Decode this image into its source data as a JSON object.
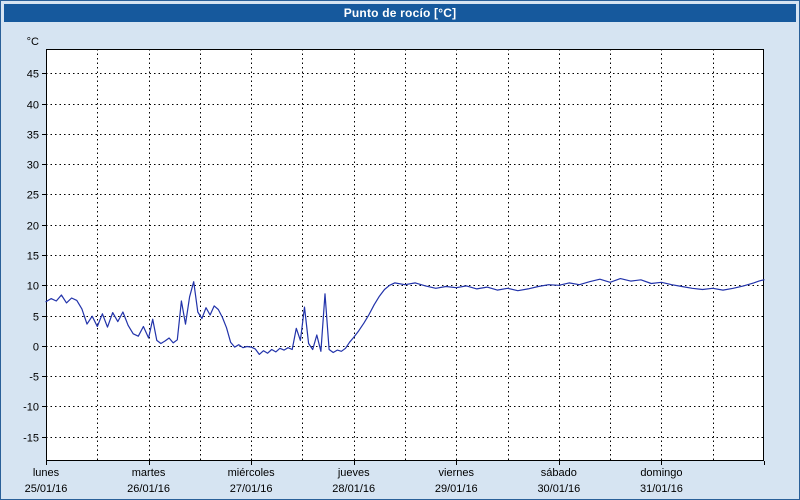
{
  "window": {
    "title": "Punto de rocío [°C]"
  },
  "colors": {
    "titlebar_bg": "#16599d",
    "titlebar_text": "#ffffff",
    "background": "#d6e4f2",
    "frame_border": "#2a6099",
    "plot_bg": "#ffffff",
    "plot_border": "#000000",
    "grid": "#000000",
    "line": "#2233aa",
    "text": "#000000"
  },
  "chart_data": {
    "type": "line",
    "title": "Punto de rocío [°C]",
    "ylabel": "°C",
    "y_unit_label": "°C",
    "ylim": [
      -19,
      49
    ],
    "y_ticks": [
      45,
      40,
      35,
      30,
      25,
      20,
      15,
      10,
      5,
      0,
      -5,
      -10,
      -15
    ],
    "x_range_days": [
      0,
      7
    ],
    "x_minor_step_days": 0.5,
    "grid": "dashed",
    "legend": "none",
    "x_days": [
      {
        "name": "lunes",
        "date": "25/01/16"
      },
      {
        "name": "martes",
        "date": "26/01/16"
      },
      {
        "name": "miércoles",
        "date": "27/01/16"
      },
      {
        "name": "jueves",
        "date": "28/01/16"
      },
      {
        "name": "viernes",
        "date": "29/01/16"
      },
      {
        "name": "sábado",
        "date": "30/01/16"
      },
      {
        "name": "domingo",
        "date": "31/01/16"
      }
    ],
    "series": [
      {
        "name": "Punto de rocío",
        "color": "#2233aa",
        "points": [
          [
            0.0,
            7.3
          ],
          [
            0.05,
            7.8
          ],
          [
            0.1,
            7.4
          ],
          [
            0.15,
            8.4
          ],
          [
            0.2,
            7.1
          ],
          [
            0.25,
            7.9
          ],
          [
            0.3,
            7.5
          ],
          [
            0.35,
            6.1
          ],
          [
            0.4,
            3.6
          ],
          [
            0.45,
            4.9
          ],
          [
            0.5,
            3.2
          ],
          [
            0.55,
            5.3
          ],
          [
            0.6,
            3.1
          ],
          [
            0.65,
            5.5
          ],
          [
            0.7,
            4.0
          ],
          [
            0.75,
            5.6
          ],
          [
            0.8,
            3.4
          ],
          [
            0.85,
            2.0
          ],
          [
            0.9,
            1.6
          ],
          [
            0.95,
            3.2
          ],
          [
            1.0,
            1.3
          ],
          [
            1.04,
            4.4
          ],
          [
            1.08,
            0.9
          ],
          [
            1.12,
            0.4
          ],
          [
            1.16,
            0.8
          ],
          [
            1.2,
            1.3
          ],
          [
            1.24,
            0.5
          ],
          [
            1.28,
            1.0
          ],
          [
            1.32,
            7.4
          ],
          [
            1.36,
            3.6
          ],
          [
            1.4,
            8.1
          ],
          [
            1.44,
            10.6
          ],
          [
            1.48,
            5.6
          ],
          [
            1.52,
            4.5
          ],
          [
            1.56,
            6.3
          ],
          [
            1.6,
            5.1
          ],
          [
            1.64,
            6.6
          ],
          [
            1.68,
            6.0
          ],
          [
            1.72,
            4.7
          ],
          [
            1.76,
            3.0
          ],
          [
            1.8,
            0.6
          ],
          [
            1.84,
            -0.2
          ],
          [
            1.88,
            0.2
          ],
          [
            1.92,
            -0.3
          ],
          [
            1.96,
            -0.1
          ],
          [
            2.0,
            -0.2
          ],
          [
            2.04,
            -0.5
          ],
          [
            2.08,
            -1.4
          ],
          [
            2.12,
            -0.8
          ],
          [
            2.16,
            -1.2
          ],
          [
            2.2,
            -0.6
          ],
          [
            2.24,
            -1.0
          ],
          [
            2.28,
            -0.4
          ],
          [
            2.32,
            -0.7
          ],
          [
            2.36,
            -0.3
          ],
          [
            2.4,
            -0.6
          ],
          [
            2.44,
            2.9
          ],
          [
            2.48,
            0.9
          ],
          [
            2.52,
            6.4
          ],
          [
            2.56,
            0.4
          ],
          [
            2.6,
            -0.6
          ],
          [
            2.64,
            1.8
          ],
          [
            2.68,
            -0.9
          ],
          [
            2.72,
            8.6
          ],
          [
            2.76,
            -0.6
          ],
          [
            2.8,
            -1.1
          ],
          [
            2.84,
            -0.7
          ],
          [
            2.88,
            -0.9
          ],
          [
            2.92,
            -0.4
          ],
          [
            2.96,
            0.6
          ],
          [
            3.0,
            1.4
          ],
          [
            3.05,
            2.5
          ],
          [
            3.1,
            3.8
          ],
          [
            3.15,
            5.2
          ],
          [
            3.2,
            6.8
          ],
          [
            3.25,
            8.2
          ],
          [
            3.3,
            9.3
          ],
          [
            3.35,
            10.0
          ],
          [
            3.4,
            10.4
          ],
          [
            3.5,
            10.1
          ],
          [
            3.6,
            10.4
          ],
          [
            3.7,
            9.9
          ],
          [
            3.8,
            9.5
          ],
          [
            3.9,
            9.8
          ],
          [
            4.0,
            9.6
          ],
          [
            4.1,
            9.9
          ],
          [
            4.2,
            9.4
          ],
          [
            4.3,
            9.7
          ],
          [
            4.4,
            9.2
          ],
          [
            4.5,
            9.5
          ],
          [
            4.6,
            9.1
          ],
          [
            4.7,
            9.4
          ],
          [
            4.8,
            9.8
          ],
          [
            4.9,
            10.1
          ],
          [
            5.0,
            10.0
          ],
          [
            5.1,
            10.4
          ],
          [
            5.2,
            10.1
          ],
          [
            5.3,
            10.6
          ],
          [
            5.4,
            11.0
          ],
          [
            5.5,
            10.5
          ],
          [
            5.6,
            11.1
          ],
          [
            5.7,
            10.7
          ],
          [
            5.8,
            10.9
          ],
          [
            5.9,
            10.3
          ],
          [
            6.0,
            10.5
          ],
          [
            6.1,
            10.1
          ],
          [
            6.2,
            9.8
          ],
          [
            6.3,
            9.5
          ],
          [
            6.4,
            9.3
          ],
          [
            6.5,
            9.5
          ],
          [
            6.6,
            9.2
          ],
          [
            6.7,
            9.5
          ],
          [
            6.8,
            9.9
          ],
          [
            6.9,
            10.4
          ],
          [
            6.95,
            10.7
          ],
          [
            7.0,
            10.9
          ]
        ]
      }
    ]
  }
}
